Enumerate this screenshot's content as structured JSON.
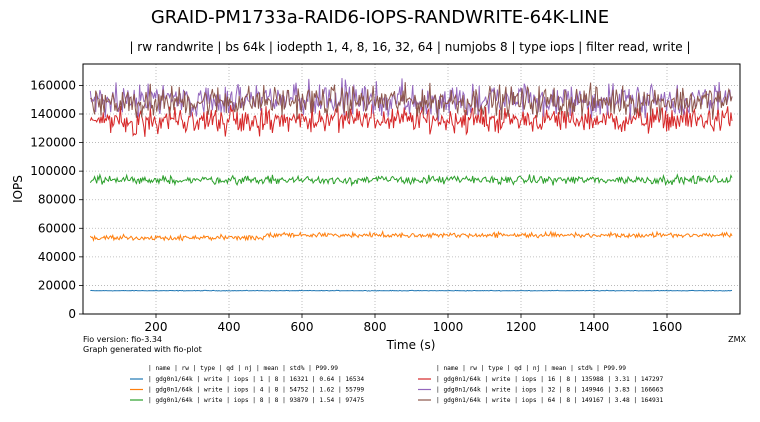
{
  "chart_data": {
    "type": "line",
    "title": "GRAID-PM1733a-RAID6-IOPS-RANDWRITE-64K-LINE",
    "subtitle": "| rw randwrite | bs 64k | iodepth 1, 4, 8, 16, 32, 64 | numjobs 8 | type iops | filter read, write |",
    "xlabel": "Time (s)",
    "ylabel": "IOPS",
    "xlim": [
      0,
      1800
    ],
    "ylim": [
      0,
      175000
    ],
    "x_ticks": [
      200,
      400,
      600,
      800,
      1000,
      1200,
      1400,
      1600
    ],
    "y_ticks": [
      0,
      20000,
      40000,
      60000,
      80000,
      100000,
      120000,
      140000,
      160000
    ],
    "grid": true,
    "footer_left": [
      "Fio version: fio-3.34",
      "Graph generated with fio-plot"
    ],
    "footer_right": "ZMX",
    "legend_header": "| name         | rw    | type | qd | nj | mean   | std% | P99.99",
    "series": [
      {
        "color": "#1f77b4",
        "mean": 16321,
        "std_pct": 0.64,
        "p9999": 16534,
        "legend": "| gdg0n1/64k | write | iops |  1 |  8 |  16321 | 0.64 |  16534"
      },
      {
        "color": "#ff7f0e",
        "mean": 54752,
        "std_pct": 1.62,
        "p9999": 55799,
        "legend": "| gdg0n1/64k | write | iops |  4 |  8 |  54752 | 1.62 |  55799"
      },
      {
        "color": "#2ca02c",
        "mean": 93879,
        "std_pct": 1.54,
        "p9999": 97475,
        "legend": "| gdg0n1/64k | write | iops |  8 |  8 |  93879 | 1.54 |  97475"
      },
      {
        "color": "#d62728",
        "mean": 135988,
        "std_pct": 3.31,
        "p9999": 147297,
        "legend": "| gdg0n1/64k | write | iops | 16 |  8 | 135988 | 3.31 | 147297"
      },
      {
        "color": "#9467bd",
        "mean": 149946,
        "std_pct": 3.83,
        "p9999": 166663,
        "legend": "| gdg0n1/64k | write | iops | 32 |  8 | 149946 | 3.83 | 166663"
      },
      {
        "color": "#8c564b",
        "mean": 149167,
        "std_pct": 3.48,
        "p9999": 164931,
        "legend": "| gdg0n1/64k | write | iops | 64 |  8 | 149167 | 3.48 | 164931"
      }
    ]
  }
}
